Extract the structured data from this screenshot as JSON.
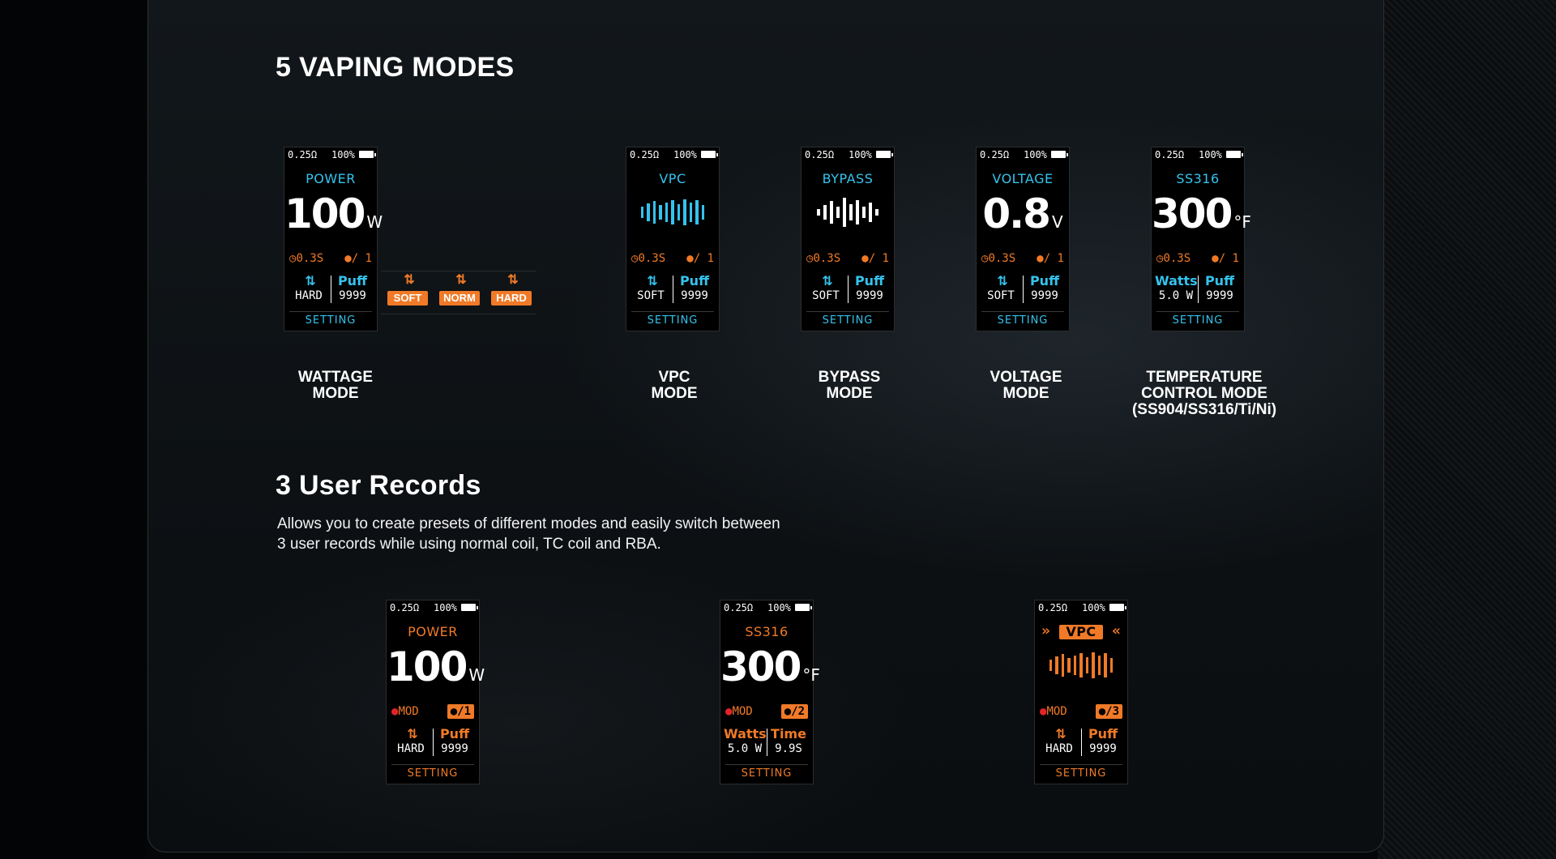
{
  "section1": {
    "title": "5 VAPING MODES"
  },
  "section2": {
    "title": "3 User Records",
    "desc_line1": "Allows you to create presets of different modes and easily switch between",
    "desc_line2": "3 user records while using normal coil, TC coil and RBA."
  },
  "common": {
    "resistance": "0.25Ω",
    "battery_pct": "100%",
    "setting": "SETTING",
    "puff_label": "Puff",
    "puff_value": "9999",
    "time_value": "0.3S",
    "user_one": "/ 1",
    "arrows": "⇅"
  },
  "modes": [
    {
      "name": "POWER",
      "value": "100",
      "unit": "W",
      "c1_head": "⇅",
      "c1_val": "HARD",
      "label1": "WATTAGE",
      "label2": "MODE"
    },
    {
      "name": "VPC",
      "c1_head": "⇅",
      "c1_val": "SOFT",
      "label1": "VPC",
      "label2": "MODE"
    },
    {
      "name": "BYPASS",
      "c1_head": "⇅",
      "c1_val": "SOFT",
      "label1": "BYPASS",
      "label2": "MODE"
    },
    {
      "name": "VOLTAGE",
      "value": "0.8",
      "unit": "V",
      "c1_head": "⇅",
      "c1_val": "SOFT",
      "label1": "VOLTAGE",
      "label2": "MODE"
    },
    {
      "name": "SS316",
      "value": "300",
      "unit": "°F",
      "c1_head": "Watts",
      "c1_val": "5.0 W",
      "label1": "TEMPERATURE",
      "label2": "CONTROL MODE",
      "label3": "(SS904/SS316/Ti/Ni)"
    }
  ],
  "strengths": [
    "SOFT",
    "NORM",
    "HARD"
  ],
  "records": [
    {
      "name": "POWER",
      "value": "100",
      "unit": "W",
      "mod": "MOD",
      "user": "/1",
      "c1_head": "⇅",
      "c1_val": "HARD",
      "c2_head": "Puff",
      "c2_val": "9999"
    },
    {
      "name": "SS316",
      "value": "300",
      "unit": "°F",
      "mod": "MOD",
      "user": "/2",
      "c1_head": "Watts",
      "c1_val": "5.0 W",
      "c2_head": "Time",
      "c2_val": "9.9S"
    },
    {
      "name": "VPC",
      "mod": "MOD",
      "user": "/3",
      "c1_head": "⇅",
      "c1_val": "HARD",
      "c2_head": "Puff",
      "c2_val": "9999"
    }
  ],
  "colors": {
    "blue": "#34c3ee",
    "orange": "#f07a27",
    "background": "#0d1114"
  },
  "icons": {
    "timer": "clock-icon",
    "user": "user-icon",
    "battery": "battery-icon",
    "mod": "drop-icon"
  }
}
